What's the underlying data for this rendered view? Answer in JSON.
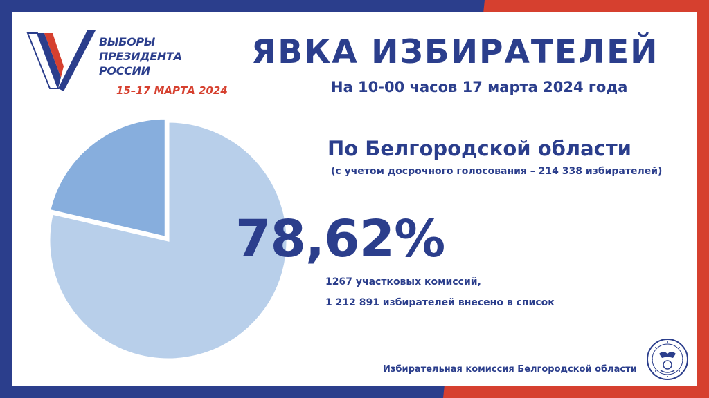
{
  "logo": {
    "lines": [
      "ВЫБОРЫ",
      "ПРЕЗИДЕНТА",
      "РОССИИ"
    ],
    "dates": "15–17 МАРТА 2024",
    "colors": {
      "white": "#ffffff",
      "blue": "#2b3e8c",
      "red": "#d6402f"
    }
  },
  "header": {
    "title": "ЯВКА ИЗБИРАТЕЛЕЙ",
    "subtitle": "На 10-00 часов 17 марта 2024 года"
  },
  "region": {
    "name": "По Белгородской области",
    "note": "(с учетом досрочного голосования – 214 338 избирателей)"
  },
  "chart_data": {
    "type": "pie",
    "values": [
      78.62,
      21.38
    ],
    "colors": [
      "#b8cfea",
      "#87aedd"
    ],
    "start_angle_deg": 0,
    "exploded": true,
    "data_label": "78,62%"
  },
  "stats": {
    "commissions": "1267 участковых комиссий,",
    "voters": "1 212 891 избирателей внесено  в список"
  },
  "footer": {
    "commission": "Избирательная комиссия Белгородской области",
    "emblem_icon": "commission-emblem-icon"
  },
  "theme": {
    "title_color": "#2b3e8c",
    "frame_blue": "#2b3e8c",
    "frame_red": "#d6402f"
  }
}
